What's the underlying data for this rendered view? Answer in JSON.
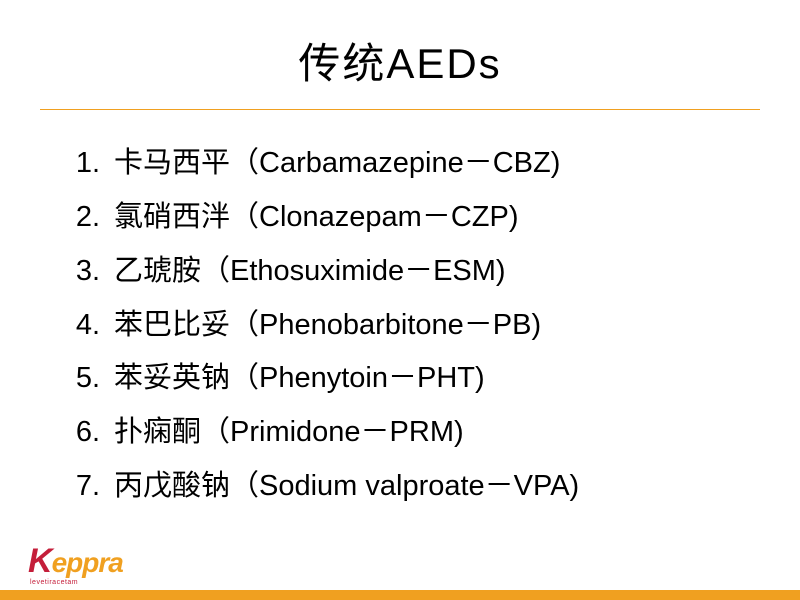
{
  "slide": {
    "title": "传统AEDs",
    "title_fontsize": 42,
    "title_color": "#000000",
    "divider_color": "#f0a020",
    "background_color": "#ffffff",
    "list_fontsize": 29,
    "list_color": "#000000",
    "items": [
      {
        "number": "1.",
        "text": "卡马西平（Carbamazepine－CBZ)"
      },
      {
        "number": "2.",
        "text": "氯硝西泮（Clonazepam－CZP)"
      },
      {
        "number": "3.",
        "text": "乙琥胺（Ethosuximide－ESM)"
      },
      {
        "number": "4.",
        "text": "苯巴比妥（Phenobarbitone－PB)"
      },
      {
        "number": "5.",
        "text": "苯妥英钠（Phenytoin－PHT)"
      },
      {
        "number": "6.",
        "text": "扑痫酮（Primidone－PRM)"
      },
      {
        "number": "7.",
        "text": "丙戊酸钠（Sodium valproate－VPA)"
      }
    ]
  },
  "logo": {
    "brand_k": "K",
    "brand_rest": "eppra",
    "subtitle": "levetiracetam",
    "k_color": "#c41e3a",
    "rest_color": "#f0a020"
  },
  "bottom_bar_color": "#f0a020"
}
